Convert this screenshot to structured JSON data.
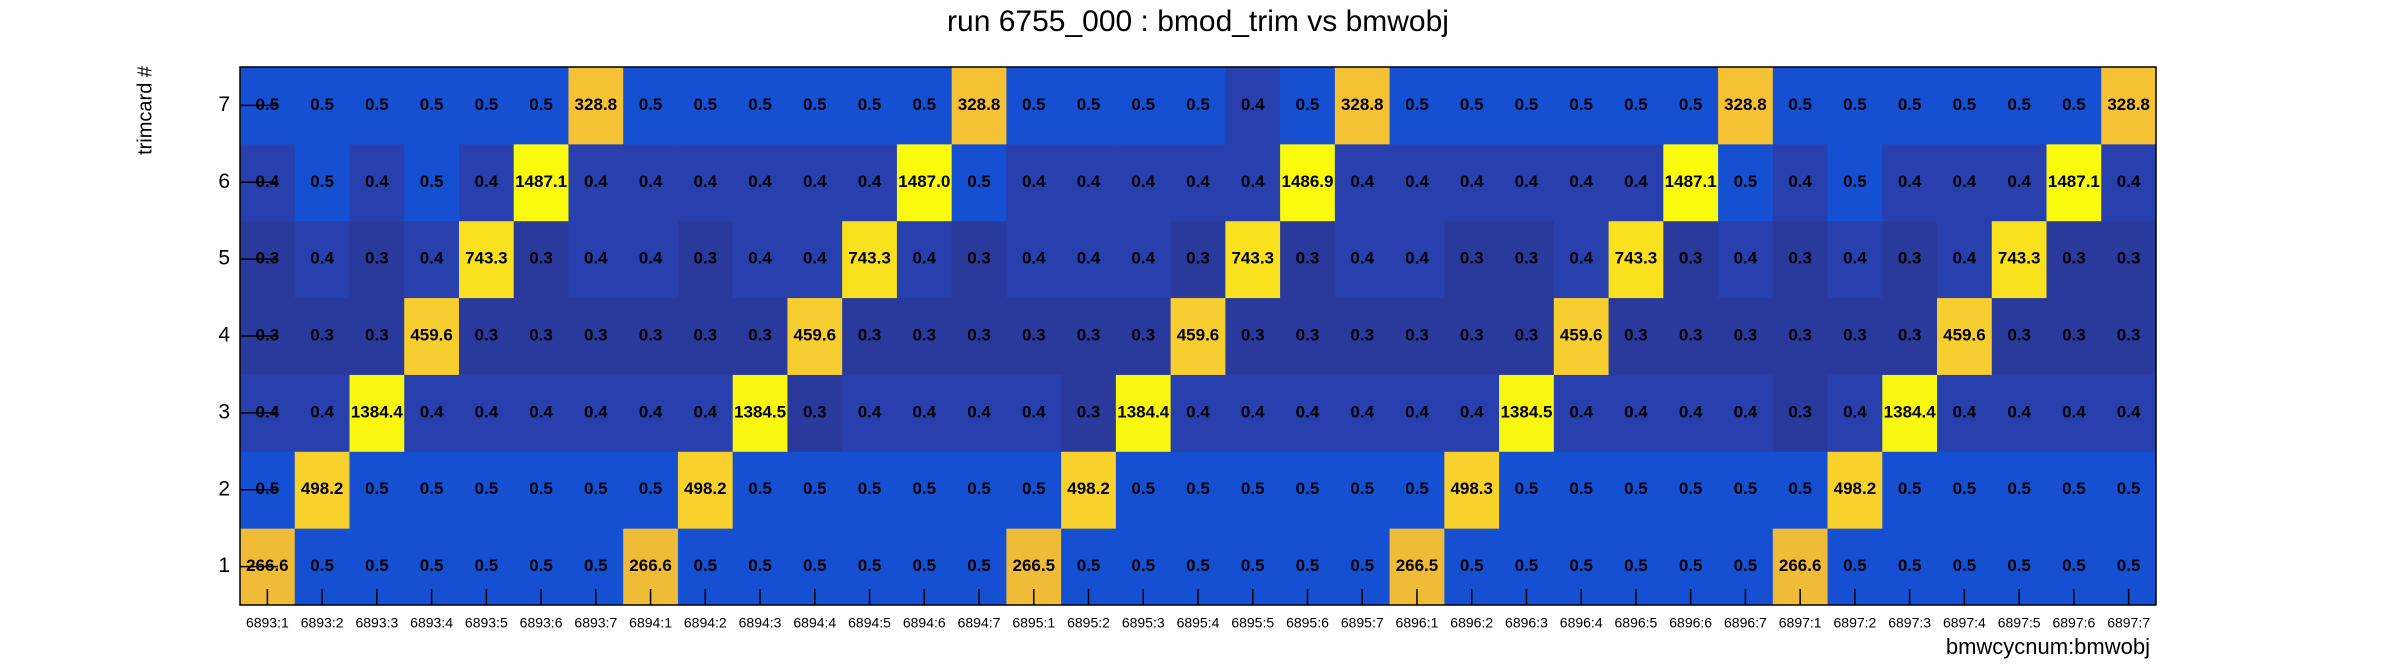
{
  "chart_data": {
    "type": "heatmap",
    "title": "run 6755_000 : bmod_trim vs bmwobj",
    "x_label": "bmwcycnum:bmwobj",
    "y_label": "trimcard #",
    "categories": [
      "6893:1",
      "6893:2",
      "6893:3",
      "6893:4",
      "6893:5",
      "6893:6",
      "6893:7",
      "6894:1",
      "6894:2",
      "6894:3",
      "6894:4",
      "6894:5",
      "6894:6",
      "6894:7",
      "6895:1",
      "6895:2",
      "6895:3",
      "6895:4",
      "6895:5",
      "6895:6",
      "6895:7",
      "6896:1",
      "6896:2",
      "6896:3",
      "6896:4",
      "6896:5",
      "6896:6",
      "6896:7",
      "6897:1",
      "6897:2",
      "6897:3",
      "6897:4",
      "6897:5",
      "6897:6",
      "6897:7"
    ],
    "y_categories": [
      1,
      2,
      3,
      4,
      5,
      6,
      7
    ],
    "values": [
      [
        266.6,
        0.5,
        0.5,
        0.5,
        0.5,
        0.5,
        0.5,
        266.6,
        0.5,
        0.5,
        0.5,
        0.5,
        0.5,
        0.5,
        266.5,
        0.5,
        0.5,
        0.5,
        0.5,
        0.5,
        0.5,
        266.5,
        0.5,
        0.5,
        0.5,
        0.5,
        0.5,
        0.5,
        266.6,
        0.5,
        0.5,
        0.5,
        0.5,
        0.5,
        0.5
      ],
      [
        0.5,
        498.2,
        0.5,
        0.5,
        0.5,
        0.5,
        0.5,
        0.5,
        498.2,
        0.5,
        0.5,
        0.5,
        0.5,
        0.5,
        0.5,
        498.2,
        0.5,
        0.5,
        0.5,
        0.5,
        0.5,
        0.5,
        498.3,
        0.5,
        0.5,
        0.5,
        0.5,
        0.5,
        0.5,
        498.2,
        0.5,
        0.5,
        0.5,
        0.5,
        0.5
      ],
      [
        0.4,
        0.4,
        1384.4,
        0.4,
        0.4,
        0.4,
        0.4,
        0.4,
        0.4,
        1384.5,
        0.3,
        0.4,
        0.4,
        0.4,
        0.4,
        0.3,
        1384.4,
        0.4,
        0.4,
        0.4,
        0.4,
        0.4,
        0.4,
        1384.5,
        0.4,
        0.4,
        0.4,
        0.4,
        0.3,
        0.4,
        1384.4,
        0.4,
        0.4,
        0.4,
        0.4
      ],
      [
        0.3,
        0.3,
        0.3,
        459.6,
        0.3,
        0.3,
        0.3,
        0.3,
        0.3,
        0.3,
        459.6,
        0.3,
        0.3,
        0.3,
        0.3,
        0.3,
        0.3,
        459.6,
        0.3,
        0.3,
        0.3,
        0.3,
        0.3,
        0.3,
        459.6,
        0.3,
        0.3,
        0.3,
        0.3,
        0.3,
        0.3,
        459.6,
        0.3,
        0.3,
        0.3
      ],
      [
        0.3,
        0.4,
        0.3,
        0.4,
        743.3,
        0.3,
        0.4,
        0.4,
        0.3,
        0.4,
        0.4,
        743.3,
        0.4,
        0.3,
        0.4,
        0.4,
        0.4,
        0.3,
        743.3,
        0.3,
        0.4,
        0.4,
        0.3,
        0.3,
        0.4,
        743.3,
        0.3,
        0.4,
        0.3,
        0.4,
        0.3,
        0.4,
        743.3,
        0.3,
        0.3
      ],
      [
        0.4,
        0.5,
        0.4,
        0.5,
        0.4,
        1487.1,
        0.4,
        0.4,
        0.4,
        0.4,
        0.4,
        0.4,
        1487.0,
        0.5,
        0.4,
        0.4,
        0.4,
        0.4,
        0.4,
        1486.9,
        0.4,
        0.4,
        0.4,
        0.4,
        0.4,
        0.4,
        1487.1,
        0.5,
        0.4,
        0.5,
        0.4,
        0.4,
        0.4,
        1487.1,
        0.4
      ],
      [
        0.5,
        0.5,
        0.5,
        0.5,
        0.5,
        0.5,
        328.8,
        0.5,
        0.5,
        0.5,
        0.5,
        0.5,
        0.5,
        328.8,
        0.5,
        0.5,
        0.5,
        0.5,
        0.4,
        0.5,
        328.8,
        0.5,
        0.5,
        0.5,
        0.5,
        0.5,
        0.5,
        328.8,
        0.5,
        0.5,
        0.5,
        0.5,
        0.5,
        0.5,
        328.8
      ]
    ],
    "value_labels": [
      [
        "266.6",
        "0.5",
        "0.5",
        "0.5",
        "0.5",
        "0.5",
        "0.5",
        "266.6",
        "0.5",
        "0.5",
        "0.5",
        "0.5",
        "0.5",
        "0.5",
        "266.5",
        "0.5",
        "0.5",
        "0.5",
        "0.5",
        "0.5",
        "0.5",
        "266.5",
        "0.5",
        "0.5",
        "0.5",
        "0.5",
        "0.5",
        "0.5",
        "266.6",
        "0.5",
        "0.5",
        "0.5",
        "0.5",
        "0.5",
        "0.5"
      ],
      [
        "0.5",
        "498.2",
        "0.5",
        "0.5",
        "0.5",
        "0.5",
        "0.5",
        "0.5",
        "498.2",
        "0.5",
        "0.5",
        "0.5",
        "0.5",
        "0.5",
        "0.5",
        "498.2",
        "0.5",
        "0.5",
        "0.5",
        "0.5",
        "0.5",
        "0.5",
        "498.3",
        "0.5",
        "0.5",
        "0.5",
        "0.5",
        "0.5",
        "0.5",
        "498.2",
        "0.5",
        "0.5",
        "0.5",
        "0.5",
        "0.5"
      ],
      [
        "0.4",
        "0.4",
        "1384.4",
        "0.4",
        "0.4",
        "0.4",
        "0.4",
        "0.4",
        "0.4",
        "1384.5",
        "0.3",
        "0.4",
        "0.4",
        "0.4",
        "0.4",
        "0.3",
        "1384.4",
        "0.4",
        "0.4",
        "0.4",
        "0.4",
        "0.4",
        "0.4",
        "1384.5",
        "0.4",
        "0.4",
        "0.4",
        "0.4",
        "0.3",
        "0.4",
        "1384.4",
        "0.4",
        "0.4",
        "0.4",
        "0.4"
      ],
      [
        "0.3",
        "0.3",
        "0.3",
        "459.6",
        "0.3",
        "0.3",
        "0.3",
        "0.3",
        "0.3",
        "0.3",
        "459.6",
        "0.3",
        "0.3",
        "0.3",
        "0.3",
        "0.3",
        "0.3",
        "459.6",
        "0.3",
        "0.3",
        "0.3",
        "0.3",
        "0.3",
        "0.3",
        "459.6",
        "0.3",
        "0.3",
        "0.3",
        "0.3",
        "0.3",
        "0.3",
        "459.6",
        "0.3",
        "0.3",
        "0.3"
      ],
      [
        "0.3",
        "0.4",
        "0.3",
        "0.4",
        "743.3",
        "0.3",
        "0.4",
        "0.4",
        "0.3",
        "0.4",
        "0.4",
        "743.3",
        "0.4",
        "0.3",
        "0.4",
        "0.4",
        "0.4",
        "0.3",
        "743.3",
        "0.3",
        "0.4",
        "0.4",
        "0.3",
        "0.3",
        "0.4",
        "743.3",
        "0.3",
        "0.4",
        "0.3",
        "0.4",
        "0.3",
        "0.4",
        "743.3",
        "0.3",
        "0.3"
      ],
      [
        "0.4",
        "0.5",
        "0.4",
        "0.5",
        "0.4",
        "1487.1",
        "0.4",
        "0.4",
        "0.4",
        "0.4",
        "0.4",
        "0.4",
        "1487.0",
        "0.5",
        "0.4",
        "0.4",
        "0.4",
        "0.4",
        "0.4",
        "1486.9",
        "0.4",
        "0.4",
        "0.4",
        "0.4",
        "0.4",
        "0.4",
        "1487.1",
        "0.5",
        "0.4",
        "0.5",
        "0.4",
        "0.4",
        "0.4",
        "1487.1",
        "0.4"
      ],
      [
        "0.5",
        "0.5",
        "0.5",
        "0.5",
        "0.5",
        "0.5",
        "328.8",
        "0.5",
        "0.5",
        "0.5",
        "0.5",
        "0.5",
        "0.5",
        "328.8",
        "0.5",
        "0.5",
        "0.5",
        "0.5",
        "0.4",
        "0.5",
        "328.8",
        "0.5",
        "0.5",
        "0.5",
        "0.5",
        "0.5",
        "0.5",
        "328.8",
        "0.5",
        "0.5",
        "0.5",
        "0.5",
        "0.5",
        "0.5",
        "328.8"
      ]
    ]
  }
}
